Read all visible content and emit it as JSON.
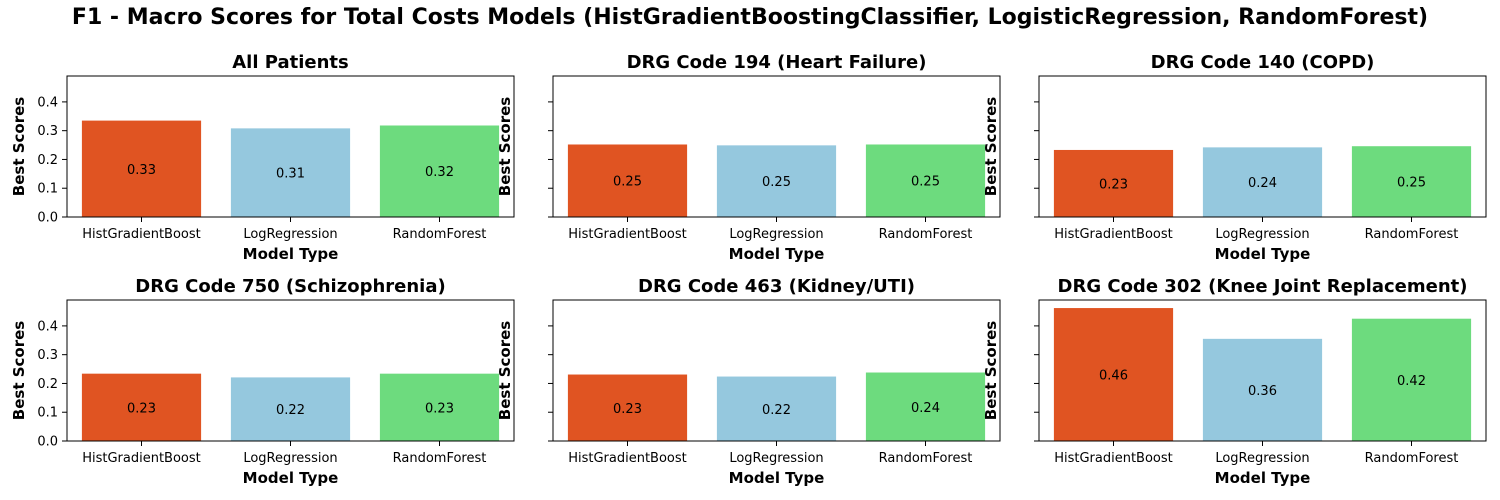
{
  "title": "F1 - Macro Scores for Total Costs Models (HistGradientBoostingClassifier, LogisticRegression, RandomForest)",
  "colors": {
    "HistGradientBoost": "#e05422",
    "LogRegression": "#95c8de",
    "RandomForest": "#6ddb7e"
  },
  "chart_data": [
    {
      "type": "bar",
      "title": "All Patients",
      "categories": [
        "HistGradientBoost",
        "LogRegression",
        "RandomForest"
      ],
      "values": [
        0.335,
        0.308,
        0.318
      ],
      "labels": [
        "0.33",
        "0.31",
        "0.32"
      ],
      "xlabel": "Model Type",
      "ylabel": "Best Scores",
      "ylim": [
        0,
        0.49
      ],
      "yticks": [
        "0.0",
        "0.1",
        "0.2",
        "0.3",
        "0.4"
      ],
      "show_ytick_labels": true
    },
    {
      "type": "bar",
      "title": "DRG Code 194 (Heart Failure)",
      "categories": [
        "HistGradientBoost",
        "LogRegression",
        "RandomForest"
      ],
      "values": [
        0.252,
        0.249,
        0.252
      ],
      "labels": [
        "0.25",
        "0.25",
        "0.25"
      ],
      "xlabel": "Model Type",
      "ylabel": "Best Scores",
      "ylim": [
        0,
        0.49
      ],
      "yticks": [
        "0.0",
        "0.1",
        "0.2",
        "0.3",
        "0.4"
      ],
      "show_ytick_labels": false
    },
    {
      "type": "bar",
      "title": "DRG Code 140 (COPD)",
      "categories": [
        "HistGradientBoost",
        "LogRegression",
        "RandomForest"
      ],
      "values": [
        0.233,
        0.242,
        0.246
      ],
      "labels": [
        "0.23",
        "0.24",
        "0.25"
      ],
      "xlabel": "Model Type",
      "ylabel": "Best Scores",
      "ylim": [
        0,
        0.49
      ],
      "yticks": [
        "0.0",
        "0.1",
        "0.2",
        "0.3",
        "0.4"
      ],
      "show_ytick_labels": false
    },
    {
      "type": "bar",
      "title": "DRG Code 750 (Schizophrenia)",
      "categories": [
        "HistGradientBoost",
        "LogRegression",
        "RandomForest"
      ],
      "values": [
        0.234,
        0.221,
        0.234
      ],
      "labels": [
        "0.23",
        "0.22",
        "0.23"
      ],
      "xlabel": "Model Type",
      "ylabel": "Best Scores",
      "ylim": [
        0,
        0.49
      ],
      "yticks": [
        "0.0",
        "0.1",
        "0.2",
        "0.3",
        "0.4"
      ],
      "show_ytick_labels": true
    },
    {
      "type": "bar",
      "title": "DRG Code 463 (Kidney/UTI)",
      "categories": [
        "HistGradientBoost",
        "LogRegression",
        "RandomForest"
      ],
      "values": [
        0.231,
        0.224,
        0.238
      ],
      "labels": [
        "0.23",
        "0.22",
        "0.24"
      ],
      "xlabel": "Model Type",
      "ylabel": "Best Scores",
      "ylim": [
        0,
        0.49
      ],
      "yticks": [
        "0.0",
        "0.1",
        "0.2",
        "0.3",
        "0.4"
      ],
      "show_ytick_labels": false
    },
    {
      "type": "bar",
      "title": "DRG Code 302 (Knee Joint Replacement)",
      "categories": [
        "HistGradientBoost",
        "LogRegression",
        "RandomForest"
      ],
      "values": [
        0.462,
        0.355,
        0.425
      ],
      "labels": [
        "0.46",
        "0.36",
        "0.42"
      ],
      "xlabel": "Model Type",
      "ylabel": "Best Scores",
      "ylim": [
        0,
        0.49
      ],
      "yticks": [
        "0.0",
        "0.1",
        "0.2",
        "0.3",
        "0.4"
      ],
      "show_ytick_labels": false
    }
  ]
}
